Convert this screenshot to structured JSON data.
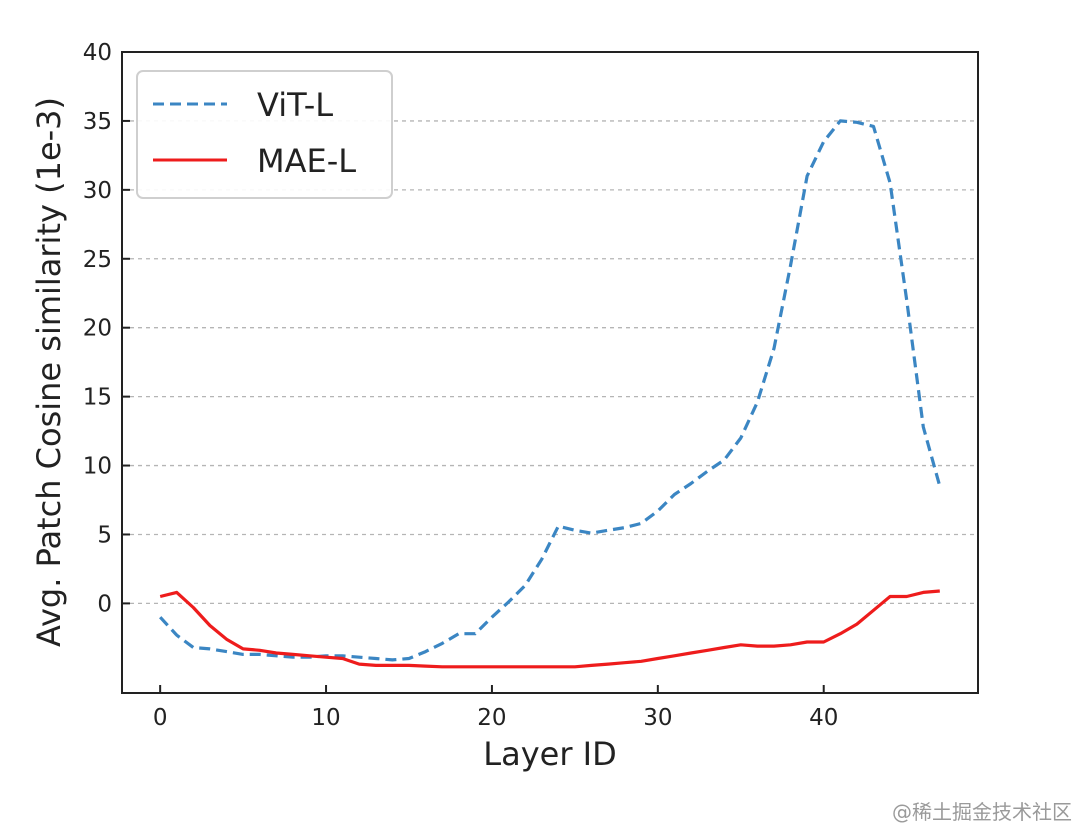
{
  "watermark": "@稀土掘金技术社区",
  "chart_data": {
    "type": "line",
    "title": "",
    "xlabel": "Layer ID",
    "ylabel": "Avg. Patch Cosine similarity (1e-3)",
    "xlim": [
      -2.3,
      49.3
    ],
    "ylim": [
      -6.5,
      40
    ],
    "x_ticks": [
      0,
      10,
      20,
      30,
      40
    ],
    "y_ticks": [
      0,
      5,
      10,
      15,
      20,
      25,
      30,
      35,
      40
    ],
    "grid": "horizontal dashed",
    "legend_position": "top-left",
    "series": [
      {
        "name": "ViT-L",
        "color": "#3b86c3",
        "style": "dashed",
        "x": [
          0,
          1,
          2,
          3,
          4,
          5,
          6,
          7,
          8,
          9,
          10,
          11,
          12,
          13,
          14,
          15,
          16,
          17,
          18,
          19,
          20,
          21,
          22,
          23,
          24,
          25,
          26,
          27,
          28,
          29,
          30,
          31,
          32,
          33,
          34,
          35,
          36,
          37,
          38,
          39,
          40,
          41,
          42,
          43,
          44,
          45,
          46,
          47
        ],
        "y": [
          -1.0,
          -2.3,
          -3.2,
          -3.3,
          -3.5,
          -3.7,
          -3.7,
          -3.8,
          -3.9,
          -3.9,
          -3.8,
          -3.8,
          -3.9,
          -4.0,
          -4.1,
          -4.0,
          -3.5,
          -2.9,
          -2.2,
          -2.2,
          -1.0,
          0.1,
          1.3,
          3.2,
          5.6,
          5.3,
          5.1,
          5.3,
          5.5,
          5.8,
          6.7,
          7.9,
          8.7,
          9.6,
          10.4,
          12.0,
          14.6,
          18.5,
          24.5,
          31.0,
          33.5,
          35.0,
          34.9,
          34.6,
          30.5,
          22.0,
          12.8,
          8.5
        ]
      },
      {
        "name": "MAE-L",
        "color": "#ee1c1c",
        "style": "solid",
        "x": [
          0,
          1,
          2,
          3,
          4,
          5,
          6,
          7,
          8,
          9,
          10,
          11,
          12,
          13,
          14,
          15,
          16,
          17,
          18,
          19,
          20,
          21,
          22,
          23,
          24,
          25,
          26,
          27,
          28,
          29,
          30,
          31,
          32,
          33,
          34,
          35,
          36,
          37,
          38,
          39,
          40,
          41,
          42,
          43,
          44,
          45,
          46,
          47
        ],
        "y": [
          0.5,
          0.8,
          -0.3,
          -1.6,
          -2.6,
          -3.3,
          -3.4,
          -3.6,
          -3.7,
          -3.8,
          -3.9,
          -4.0,
          -4.4,
          -4.5,
          -4.5,
          -4.5,
          -4.55,
          -4.6,
          -4.6,
          -4.6,
          -4.6,
          -4.6,
          -4.6,
          -4.6,
          -4.6,
          -4.6,
          -4.5,
          -4.4,
          -4.3,
          -4.2,
          -4.0,
          -3.8,
          -3.6,
          -3.4,
          -3.2,
          -3.0,
          -3.1,
          -3.1,
          -3.0,
          -2.8,
          -2.8,
          -2.2,
          -1.5,
          -0.5,
          0.5,
          0.5,
          0.8,
          0.9
        ]
      }
    ]
  }
}
